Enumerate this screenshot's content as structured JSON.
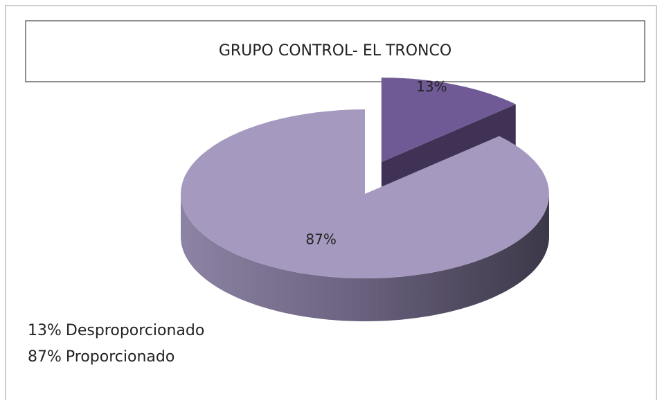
{
  "chart_data": {
    "type": "pie",
    "title": "GRUPO CONTROL- EL TRONCO",
    "categories": [
      "Desproporcionado",
      "Proporcionado"
    ],
    "values": [
      13,
      87
    ],
    "value_labels": [
      "13%",
      "87%"
    ],
    "colors": [
      "#6f5a96",
      "#a699bf"
    ],
    "exploded": [
      true,
      false
    ],
    "style": "3d"
  }
}
